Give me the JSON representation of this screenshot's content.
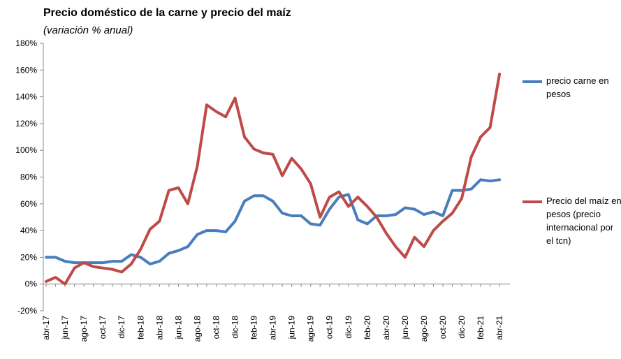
{
  "colors": {
    "carne": "#4a7ebb",
    "maiz": "#be4b48",
    "axis": "#888888"
  },
  "chart_data": {
    "type": "line",
    "title": "Precio doméstico de la carne y precio del maíz",
    "subtitle": "(variación % anual)",
    "xlabel": "",
    "ylabel": "",
    "ylim": [
      -20,
      180
    ],
    "yticks": [
      -20,
      0,
      20,
      40,
      60,
      80,
      100,
      120,
      140,
      160,
      180
    ],
    "ytick_labels": [
      "-20%",
      "0%",
      "20%",
      "40%",
      "60%",
      "80%",
      "100%",
      "120%",
      "140%",
      "160%",
      "180%"
    ],
    "grid": false,
    "legend_position": "right",
    "categories": [
      "abr-17",
      "may-17",
      "jun-17",
      "jul-17",
      "ago-17",
      "sep-17",
      "oct-17",
      "nov-17",
      "dic-17",
      "ene-18",
      "feb-18",
      "mar-18",
      "abr-18",
      "may-18",
      "jun-18",
      "jul-18",
      "ago-18",
      "sep-18",
      "oct-18",
      "nov-18",
      "dic-18",
      "ene-19",
      "feb-19",
      "mar-19",
      "abr-19",
      "may-19",
      "jun-19",
      "jul-19",
      "ago-19",
      "sep-19",
      "oct-19",
      "nov-19",
      "dic-19",
      "ene-20",
      "feb-20",
      "mar-20",
      "abr-20",
      "may-20",
      "jun-20",
      "jul-20",
      "ago-20",
      "sep-20",
      "oct-20",
      "nov-20",
      "dic-20",
      "ene-21",
      "feb-21",
      "mar-21",
      "abr-21"
    ],
    "tick_labels": [
      "abr-17",
      "jun-17",
      "ago-17",
      "oct-17",
      "dic-17",
      "feb-18",
      "abr-18",
      "jun-18",
      "ago-18",
      "oct-18",
      "dic-18",
      "feb-19",
      "abr-19",
      "jun-19",
      "ago-19",
      "oct-19",
      "dic-19",
      "feb-20",
      "abr-20",
      "jun-20",
      "ago-20",
      "oct-20",
      "dic-20",
      "feb-21",
      "abr-21"
    ],
    "series": [
      {
        "name": "precio carne en pesos",
        "color": "#4a7ebb",
        "values": [
          20,
          20,
          17,
          16,
          16,
          16,
          16,
          17,
          17,
          22,
          20,
          15,
          17,
          23,
          25,
          28,
          37,
          40,
          40,
          39,
          47,
          62,
          66,
          66,
          62,
          53,
          51,
          51,
          45,
          44,
          56,
          65,
          67,
          48,
          45,
          51,
          51,
          52,
          57,
          56,
          52,
          54,
          51,
          70,
          70,
          71,
          78,
          77,
          78
        ]
      },
      {
        "name": "Precio del maíz en pesos (precio internacional por el tcn)",
        "color": "#be4b48",
        "values": [
          2,
          5,
          0,
          12,
          16,
          13,
          12,
          11,
          9,
          15,
          26,
          41,
          47,
          70,
          72,
          60,
          88,
          134,
          129,
          125,
          139,
          110,
          101,
          98,
          97,
          81,
          94,
          86,
          75,
          50,
          65,
          69,
          58,
          65,
          58,
          50,
          38,
          28,
          20,
          35,
          28,
          40,
          47,
          53,
          64,
          95,
          110,
          117,
          157
        ]
      }
    ]
  },
  "legend": [
    {
      "label": "precio carne en pesos",
      "color": "#4a7ebb"
    },
    {
      "label": "Precio del maíz en pesos (precio internacional por el tcn)",
      "color": "#be4b48"
    }
  ]
}
